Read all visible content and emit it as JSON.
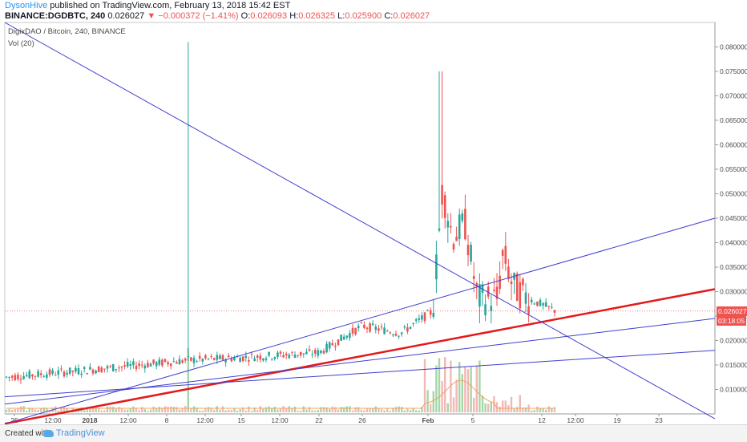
{
  "header": {
    "author": "DysonHive",
    "published": "published on TradingView.com, February 13, 2018 15:42 EST",
    "symbol": "BINANCE:DGDBTC, 240",
    "change_arrow": "▼",
    "change": "−0.000372 (−1.41%)",
    "o_label": "O:",
    "o_val": "0.026093",
    "h_label": "H:",
    "h_val": "0.026325",
    "l_label": "L:",
    "l_val": "0.025900",
    "c_label": "C:",
    "c_val": "0.026027",
    "last": "0.026027"
  },
  "legend": {
    "title": "DigixDAO / Bitcoin, 240, BINANCE",
    "volume": "Vol (20)"
  },
  "price_tags": {
    "last": "0.026027",
    "countdown": "03:18:05"
  },
  "footer": {
    "created": "Created with",
    "brand": "TradingView"
  },
  "colors": {
    "up": "#26a69a",
    "down": "#ef5350",
    "trendline": "#3f3fcf",
    "main_trendline": "#e31a1c",
    "volume_up": "#a5d6a7",
    "volume_down": "#f2b8b5",
    "volume_ma": "#f0a35e",
    "price_line": "#ef5350",
    "countdown_bg": "#ef5350"
  },
  "chart_data": {
    "type": "candlestick",
    "symbol": "BINANCE:DGDBTC",
    "interval": "240",
    "y_ticks": [
      "0.080000",
      "0.075000",
      "0.070000",
      "0.065000",
      "0.060000",
      "0.055000",
      "0.050000",
      "0.045000",
      "0.040000",
      "0.035000",
      "0.030000",
      "0.025000",
      "0.020000",
      "0.015000",
      "0.010000"
    ],
    "x_ticks": [
      "25",
      "12:00",
      "2018",
      "12:00",
      "8",
      "12:00",
      "15",
      "12:00",
      "22",
      "26",
      "Feb",
      "5",
      "12",
      "12:00",
      "19",
      "23"
    ],
    "ylim": [
      0.005,
      0.085
    ],
    "last_price": 0.026027,
    "key_points": [
      {
        "label": "start (Dec 24)",
        "close": 0.0125
      },
      {
        "label": "2018",
        "close": 0.014
      },
      {
        "label": "Jan 8 spike high",
        "high": 0.081
      },
      {
        "label": "Jan 15",
        "close": 0.0165
      },
      {
        "label": "Jan 22",
        "close": 0.0175
      },
      {
        "label": "Jan 26",
        "close": 0.023
      },
      {
        "label": "Feb 1 peak high",
        "high": 0.075
      },
      {
        "label": "Feb 2 close",
        "close": 0.051
      },
      {
        "label": "Feb 5",
        "close": 0.0285
      },
      {
        "label": "Feb 8",
        "close": 0.038
      },
      {
        "label": "Feb 13 (last)",
        "close": 0.026027
      }
    ],
    "trendlines": [
      {
        "color": "red",
        "from_price": 0.003,
        "to_price": 0.0305
      },
      {
        "color": "blue",
        "from_price": 0.085,
        "to_price": 0.004
      },
      {
        "color": "blue",
        "from_price": 0.003,
        "to_price": 0.045
      },
      {
        "color": "blue",
        "from_price": 0.007,
        "to_price": 0.0245
      },
      {
        "color": "blue",
        "from_price": 0.0085,
        "to_price": 0.018
      }
    ]
  }
}
